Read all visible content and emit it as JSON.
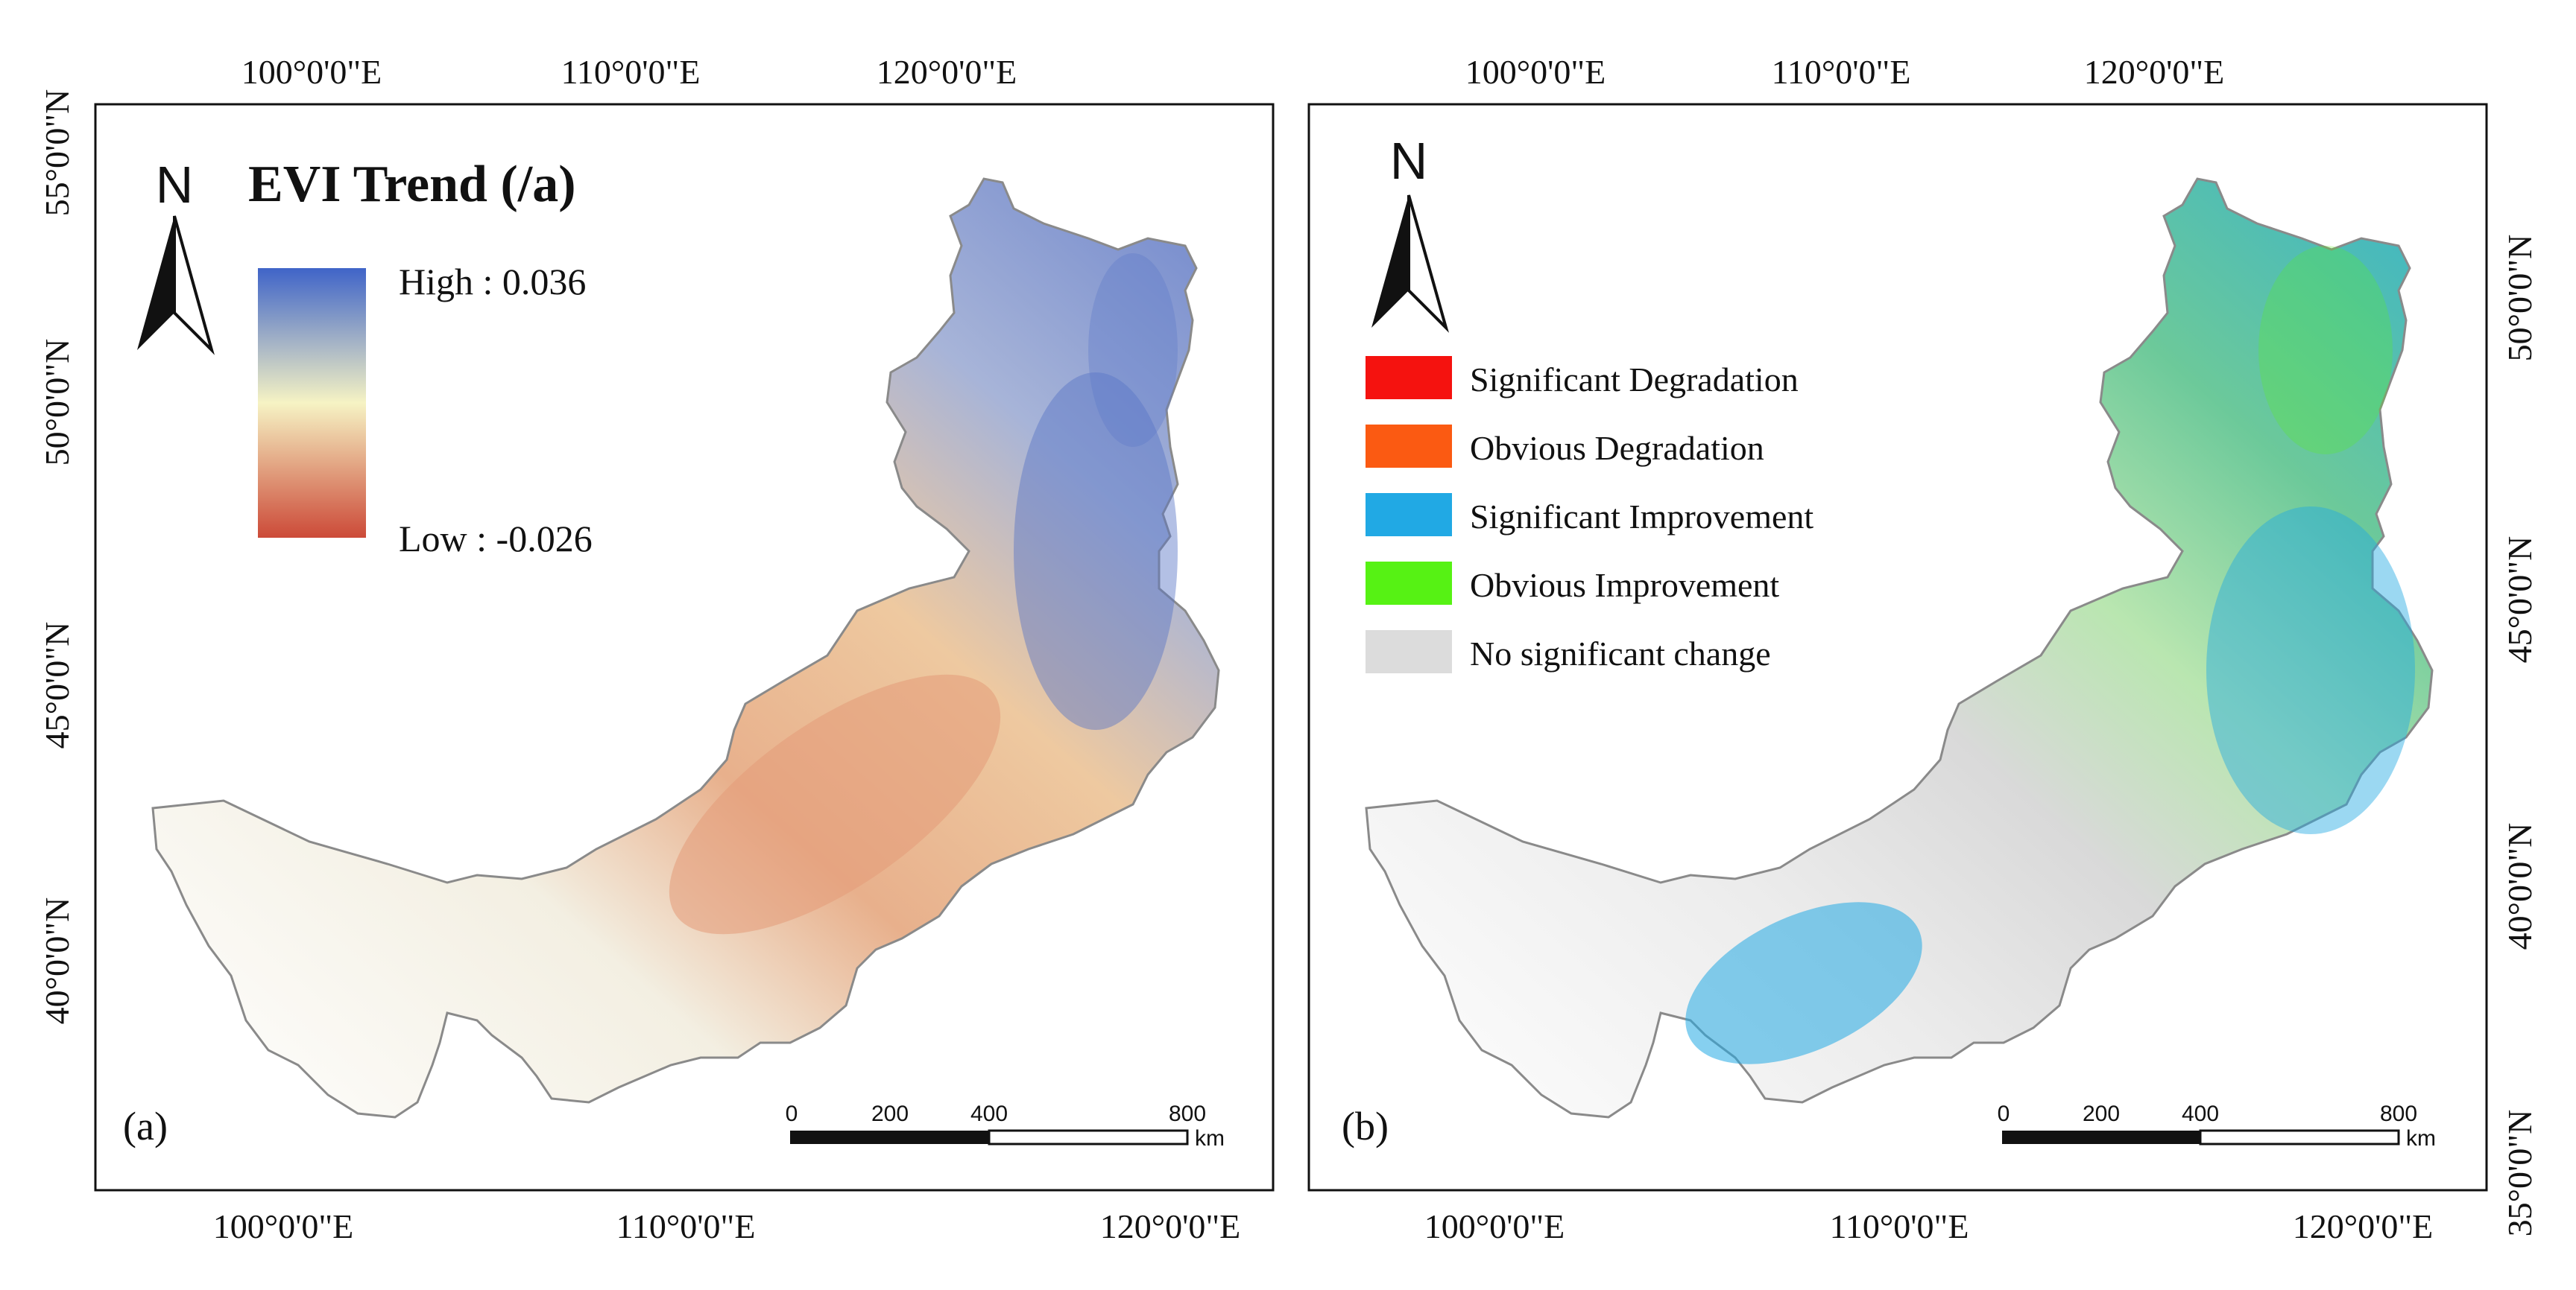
{
  "panel_a": {
    "label": "(a)",
    "top_ticks": [
      "100°0'0\"E",
      "110°0'0\"E",
      "120°0'0\"E"
    ],
    "bottom_ticks": [
      "100°0'0\"E",
      "110°0'0\"E",
      "120°0'0\"E"
    ],
    "left_ticks": [
      "55°0'0\"N",
      "50°0'0\"N",
      "45°0'0\"N",
      "40°0'0\"N"
    ],
    "north_label": "N",
    "legend": {
      "title": "EVI Trend (/a)",
      "high_label": "High : 0.036",
      "low_label": "Low : -0.026",
      "high_color": "#3f64c8",
      "mid_color": "#f6f3c4",
      "low_color": "#cc4a38"
    },
    "scale_bar": {
      "ticks": [
        "0",
        "200",
        "400",
        "800"
      ],
      "unit": "km"
    }
  },
  "panel_b": {
    "label": "(b)",
    "top_ticks": [
      "100°0'0\"E",
      "110°0'0\"E",
      "120°0'0\"E"
    ],
    "bottom_ticks": [
      "100°0'0\"E",
      "110°0'0\"E",
      "120°0'0\"E"
    ],
    "right_ticks": [
      "50°0'0\"N",
      "45°0'0\"N",
      "40°0'0\"N",
      "35°0'0\"N"
    ],
    "north_label": "N",
    "legend": [
      {
        "label": "Significant Degradation",
        "color": "#f5120f"
      },
      {
        "label": "Obvious Degradation",
        "color": "#fb5a12"
      },
      {
        "label": "Significant Improvement",
        "color": "#21a9e4"
      },
      {
        "label": "Obvious Improvement",
        "color": "#56f214"
      },
      {
        "label": "No significant change",
        "color": "#dcdcdc"
      }
    ],
    "scale_bar": {
      "ticks": [
        "0",
        "200",
        "400",
        "800"
      ],
      "unit": "km"
    }
  }
}
